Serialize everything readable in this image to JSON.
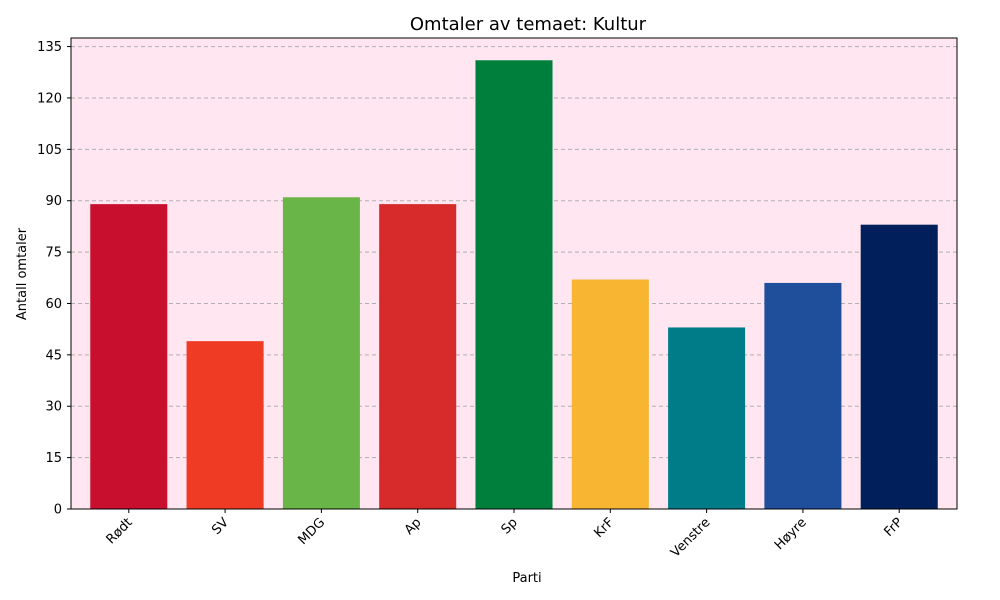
{
  "chart_data": {
    "type": "bar",
    "title": "Omtaler av temaet: Kultur",
    "xlabel": "Parti",
    "ylabel": "Antall omtaler",
    "categories": [
      "Rødt",
      "SV",
      "MDG",
      "Ap",
      "Sp",
      "KrF",
      "Venstre",
      "Høyre",
      "FrP"
    ],
    "values": [
      89,
      49,
      91,
      89,
      131,
      67,
      53,
      66,
      83
    ],
    "colors": [
      "#C8102E",
      "#F03B24",
      "#6AB547",
      "#D72A2A",
      "#007F3C",
      "#F7B532",
      "#007C89",
      "#1F4E9B",
      "#001F5B"
    ],
    "ylim": [
      0,
      137.5
    ],
    "yticks": [
      0,
      15,
      30,
      45,
      60,
      75,
      90,
      105,
      120,
      135
    ],
    "grid": "y-dashed",
    "plot_background": "#FFE6F0",
    "xtick_rotation": 45
  }
}
